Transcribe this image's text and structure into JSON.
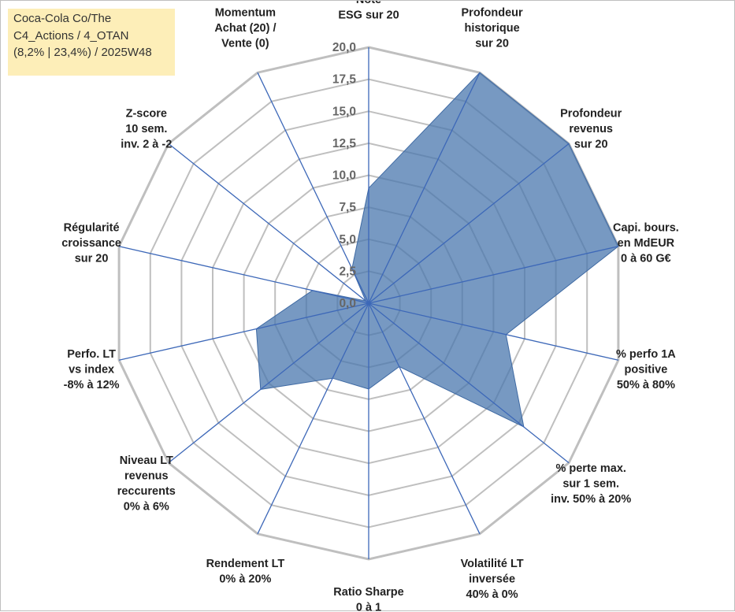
{
  "title": {
    "line1": "Coca-Cola Co/The",
    "line2": "C4_Actions / 4_OTAN",
    "line3": "(8,2% | 23,4%) / 2025W48"
  },
  "colors": {
    "fill": "#4a77ad",
    "stroke": "#3f6aa3",
    "spoke": "#3d68b8",
    "grid": "#bfbfbf",
    "title_bg": "#fdeeb8"
  },
  "chart_data": {
    "type": "radar",
    "rmin": 0,
    "rmax": 20,
    "tick_step": 2.5,
    "tick_labels": [
      "0,0",
      "2,5",
      "5,0",
      "7,5",
      "10,0",
      "12,5",
      "15,0",
      "17,5",
      "20,0"
    ],
    "axes": [
      {
        "label": [
          "Note",
          "ESG sur 20"
        ],
        "value": 9
      },
      {
        "label": [
          "Profondeur",
          "historique",
          "sur 20"
        ],
        "value": 20
      },
      {
        "label": [
          "Profondeur",
          "revenus",
          "sur 20"
        ],
        "value": 20
      },
      {
        "label": [
          "Capi. bours.",
          "en MdEUR",
          "0 à 60 G€"
        ],
        "value": 20
      },
      {
        "label": [
          "% perfo 1A",
          "positive",
          "50% à 80%"
        ],
        "value": 11
      },
      {
        "label": [
          "% perte max.",
          "sur 1 sem.",
          "inv. 50% à 20%"
        ],
        "value": 15.5
      },
      {
        "label": [
          "Volatilité LT",
          "inversée",
          "40% à 0%"
        ],
        "value": 5.5
      },
      {
        "label": [
          "Ratio Sharpe",
          "0 à 1"
        ],
        "value": 6.7
      },
      {
        "label": [
          "Rendement LT",
          "0% à 20%"
        ],
        "value": 6.5
      },
      {
        "label": [
          "Niveau LT",
          "revenus",
          "reccurents",
          "0% à 6%"
        ],
        "value": 10.8
      },
      {
        "label": [
          "Perfo. LT",
          "vs index",
          "-8% à 12%"
        ],
        "value": 9
      },
      {
        "label": [
          "Régularité",
          "croissance",
          "sur 20"
        ],
        "value": 4.5
      },
      {
        "label": [
          "Z-score",
          "10 sem.",
          "inv. 2 à -2"
        ],
        "value": 0.3
      },
      {
        "label": [
          "Momentum",
          "Achat (20) /",
          "Vente (0)"
        ],
        "value": 3
      }
    ]
  }
}
